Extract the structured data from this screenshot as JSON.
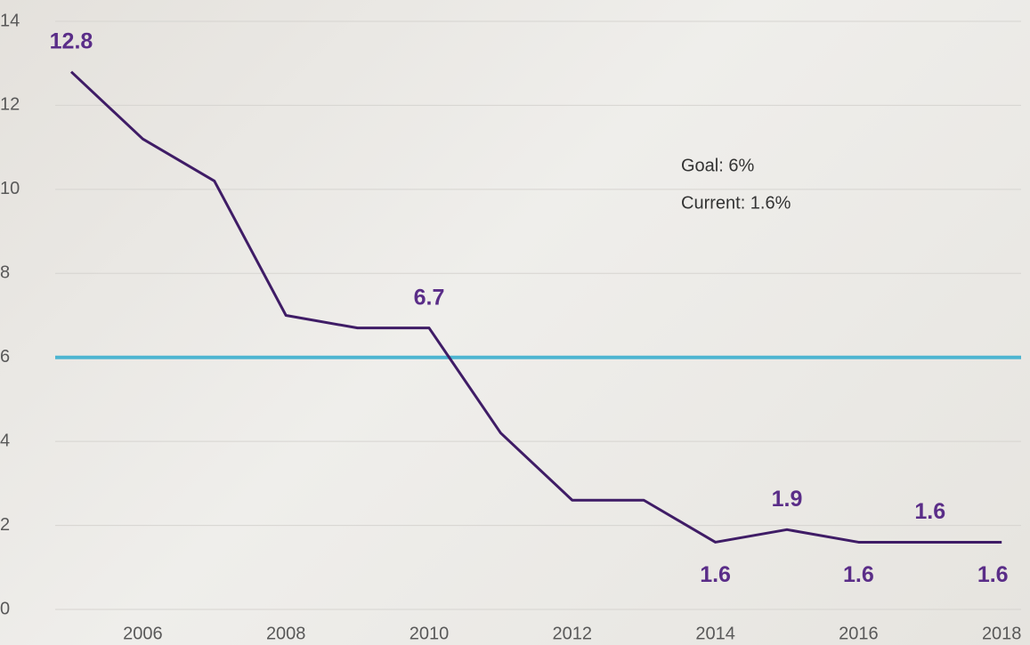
{
  "chart_data": {
    "type": "line",
    "categories": [
      null,
      "2006",
      null,
      "2008",
      null,
      "2010",
      null,
      "2012",
      null,
      "2014",
      null,
      "2016",
      null,
      "2018"
    ],
    "series": [
      {
        "color": "#3f1c66",
        "values": [
          12.8,
          11.2,
          10.2,
          7.0,
          6.7,
          6.7,
          4.2,
          2.6,
          2.6,
          1.6,
          1.9,
          1.6,
          1.6,
          1.6
        ],
        "value_labels": [
          "12.8",
          null,
          null,
          null,
          null,
          "6.7",
          null,
          null,
          null,
          "1.6",
          "1.9",
          "1.6",
          "1.6",
          "1.6"
        ]
      }
    ],
    "reference_line": {
      "value": 6,
      "color": "#4db5d1"
    },
    "annotations": [
      "Goal: 6%",
      "Current: 1.6%"
    ],
    "ylim": [
      0,
      14
    ],
    "yticks": [
      0,
      2,
      4,
      6,
      8,
      10,
      12,
      14
    ],
    "grid": true
  }
}
